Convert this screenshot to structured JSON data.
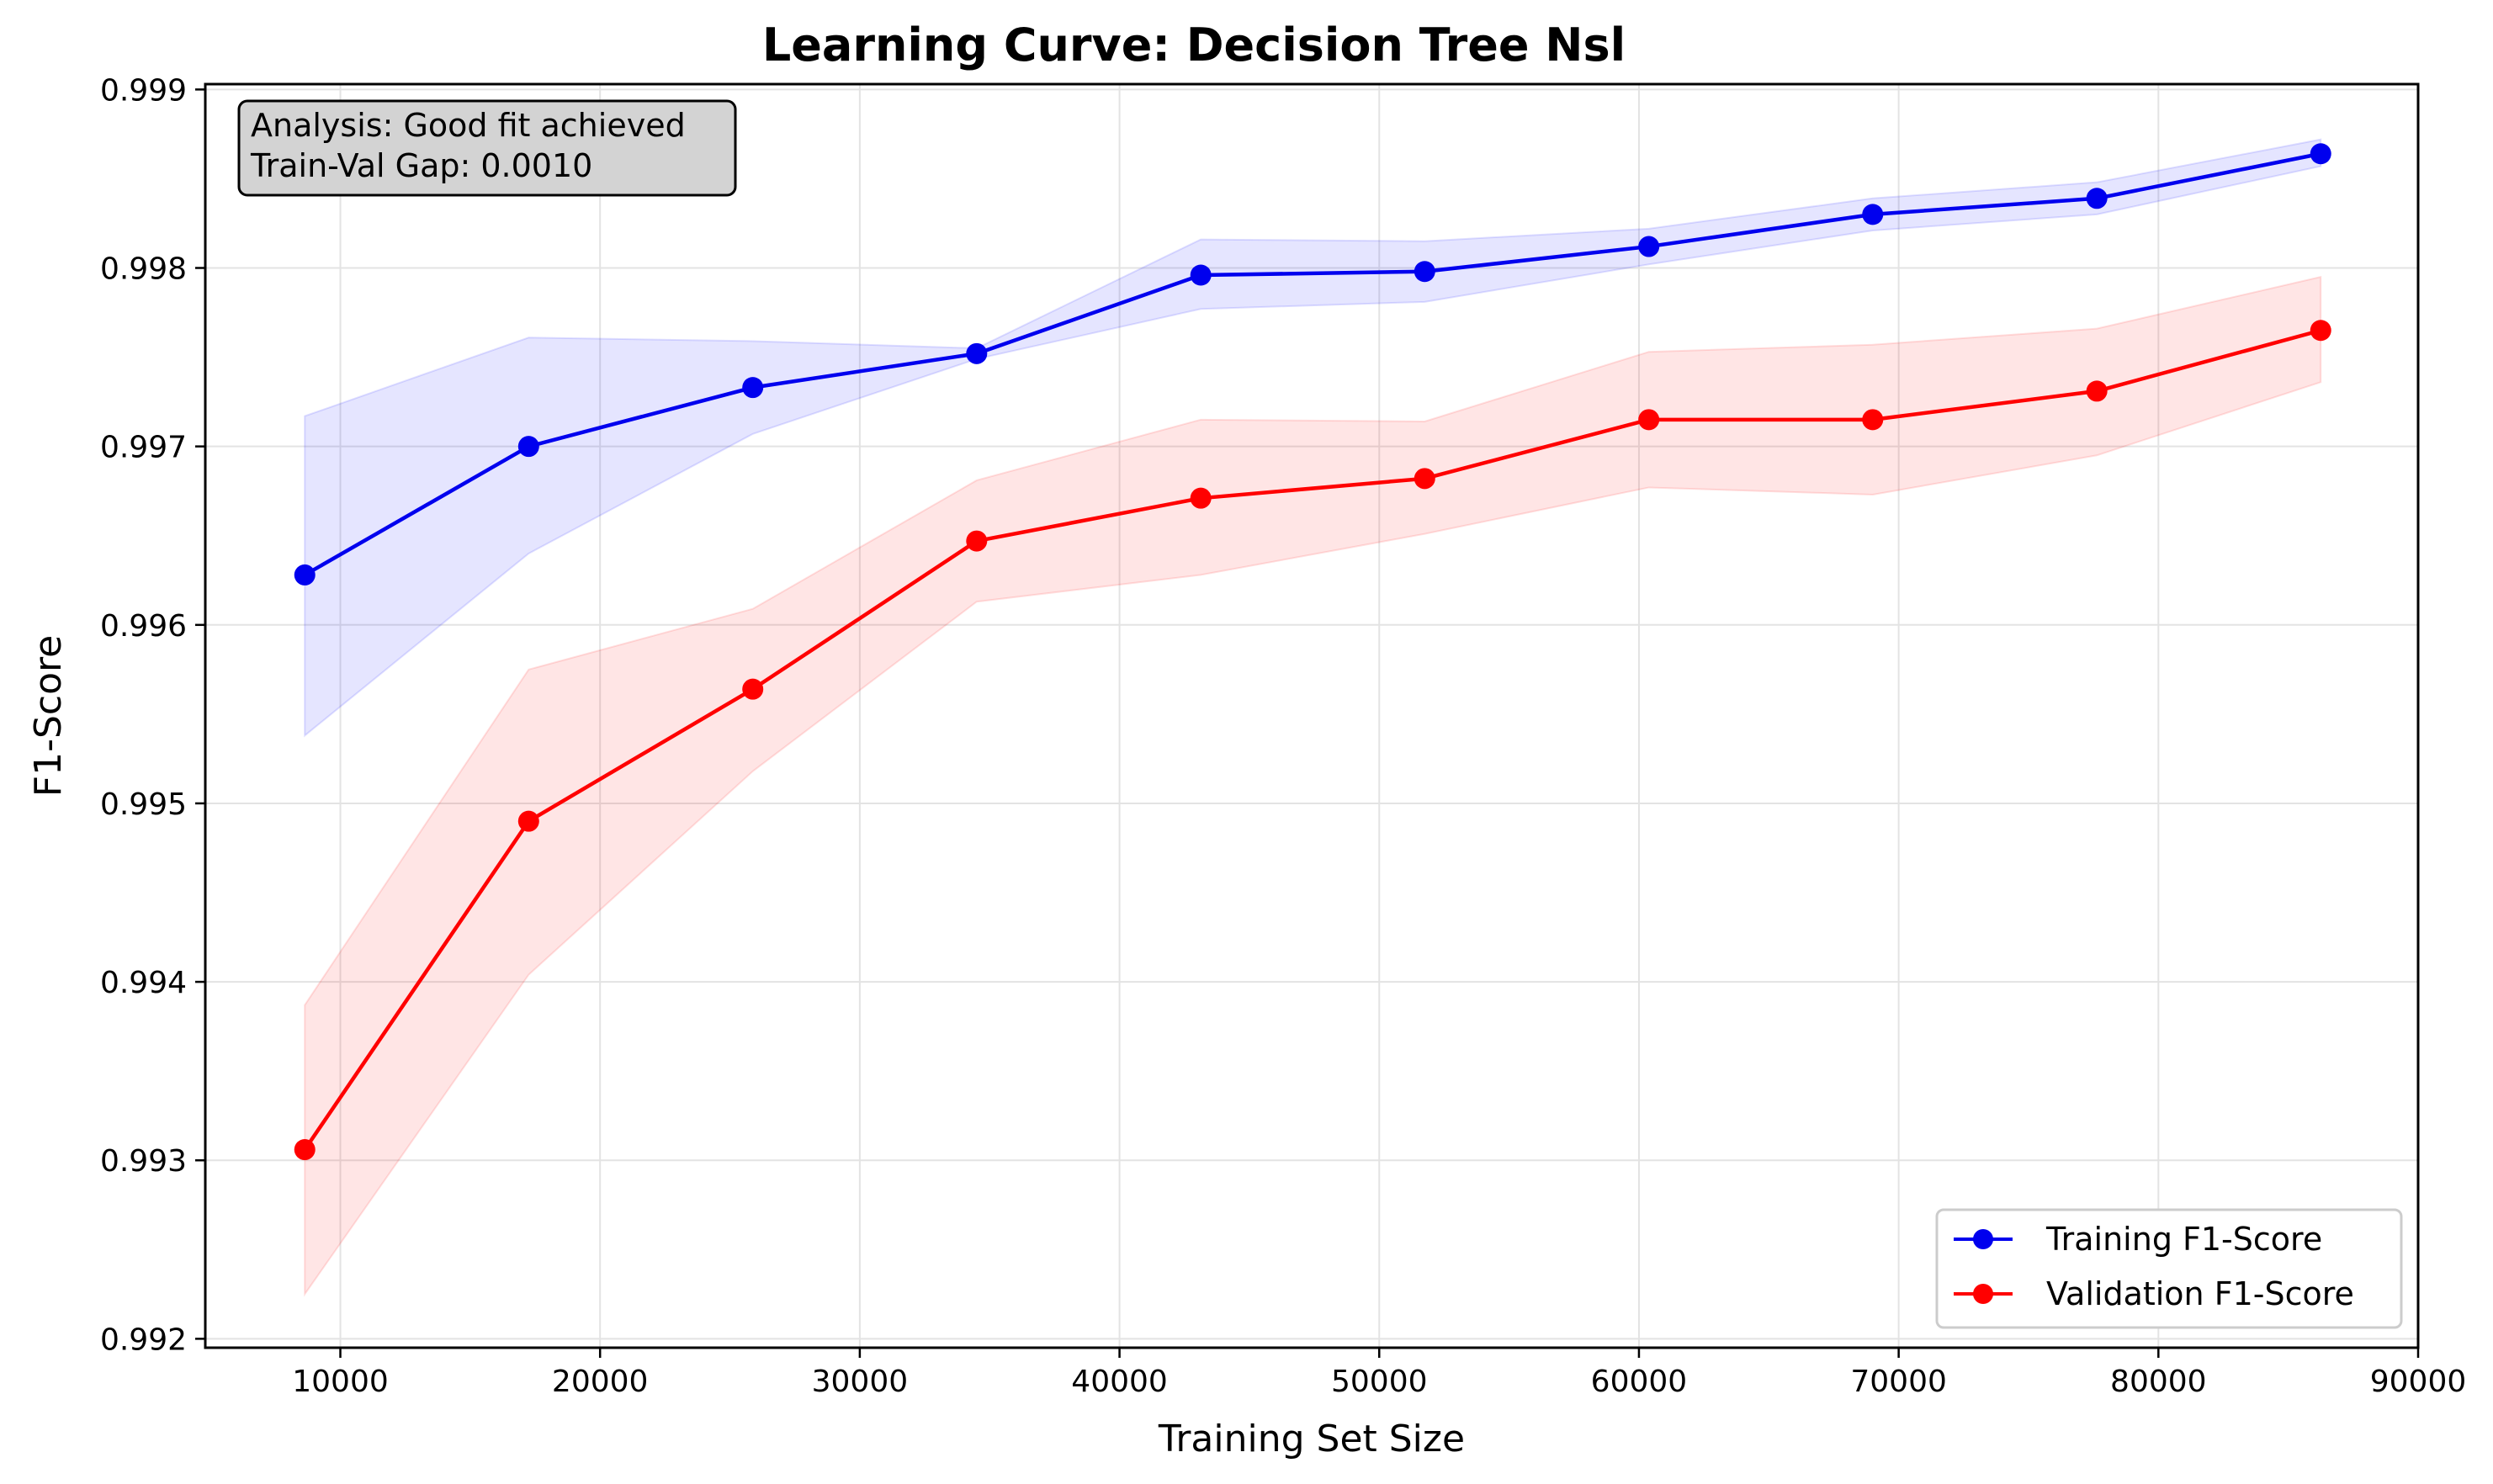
{
  "chart_data": {
    "type": "line",
    "title": "Learning Curve: Decision Tree Nsl",
    "xlabel": "Training Set Size",
    "ylabel": "F1-Score",
    "xlim": [
      4800,
      90000
    ],
    "ylim": [
      0.99195,
      0.99903
    ],
    "xticks": [
      10000,
      20000,
      30000,
      40000,
      50000,
      60000,
      70000,
      80000,
      90000
    ],
    "yticks": [
      0.992,
      0.993,
      0.994,
      0.995,
      0.996,
      0.997,
      0.998,
      0.999
    ],
    "xtick_labels": [
      "10000",
      "20000",
      "30000",
      "40000",
      "50000",
      "60000",
      "70000",
      "80000",
      "90000"
    ],
    "ytick_labels": [
      "0.992",
      "0.993",
      "0.994",
      "0.995",
      "0.996",
      "0.997",
      "0.998",
      "0.999"
    ],
    "grid": true,
    "legend_position": "bottom-right",
    "x": [
      8630,
      17250,
      25880,
      34500,
      43130,
      51750,
      60380,
      69000,
      77630,
      86250
    ],
    "series": [
      {
        "name": "Training F1-Score",
        "color": "#0000ee",
        "fill_color": "#0000ff",
        "marker": "circle",
        "values": [
          0.99628,
          0.997,
          0.99733,
          0.99752,
          0.99796,
          0.99798,
          0.99812,
          0.9983,
          0.99839,
          0.99864
        ],
        "band_lower": [
          0.99538,
          0.9964,
          0.99707,
          0.99749,
          0.99777,
          0.99781,
          0.99802,
          0.99821,
          0.9983,
          0.99857
        ],
        "band_upper": [
          0.99717,
          0.99761,
          0.99759,
          0.99755,
          0.99816,
          0.99815,
          0.99822,
          0.99839,
          0.99848,
          0.99872
        ]
      },
      {
        "name": "Validation F1-Score",
        "color": "#ff0000",
        "fill_color": "#ff0000",
        "marker": "circle",
        "values": [
          0.99306,
          0.9949,
          0.99564,
          0.99647,
          0.99671,
          0.99682,
          0.99715,
          0.99715,
          0.99731,
          0.99765
        ],
        "band_lower": [
          0.99225,
          0.99404,
          0.99518,
          0.99613,
          0.99628,
          0.99651,
          0.99677,
          0.99673,
          0.99695,
          0.99736
        ],
        "band_upper": [
          0.99387,
          0.99575,
          0.99609,
          0.99681,
          0.99715,
          0.99714,
          0.99753,
          0.99757,
          0.99766,
          0.99795
        ]
      }
    ],
    "annotation": {
      "line1": "Analysis: Good fit achieved",
      "line2": "Train-Val Gap: 0.0010",
      "background": "#d3d3d3"
    }
  }
}
